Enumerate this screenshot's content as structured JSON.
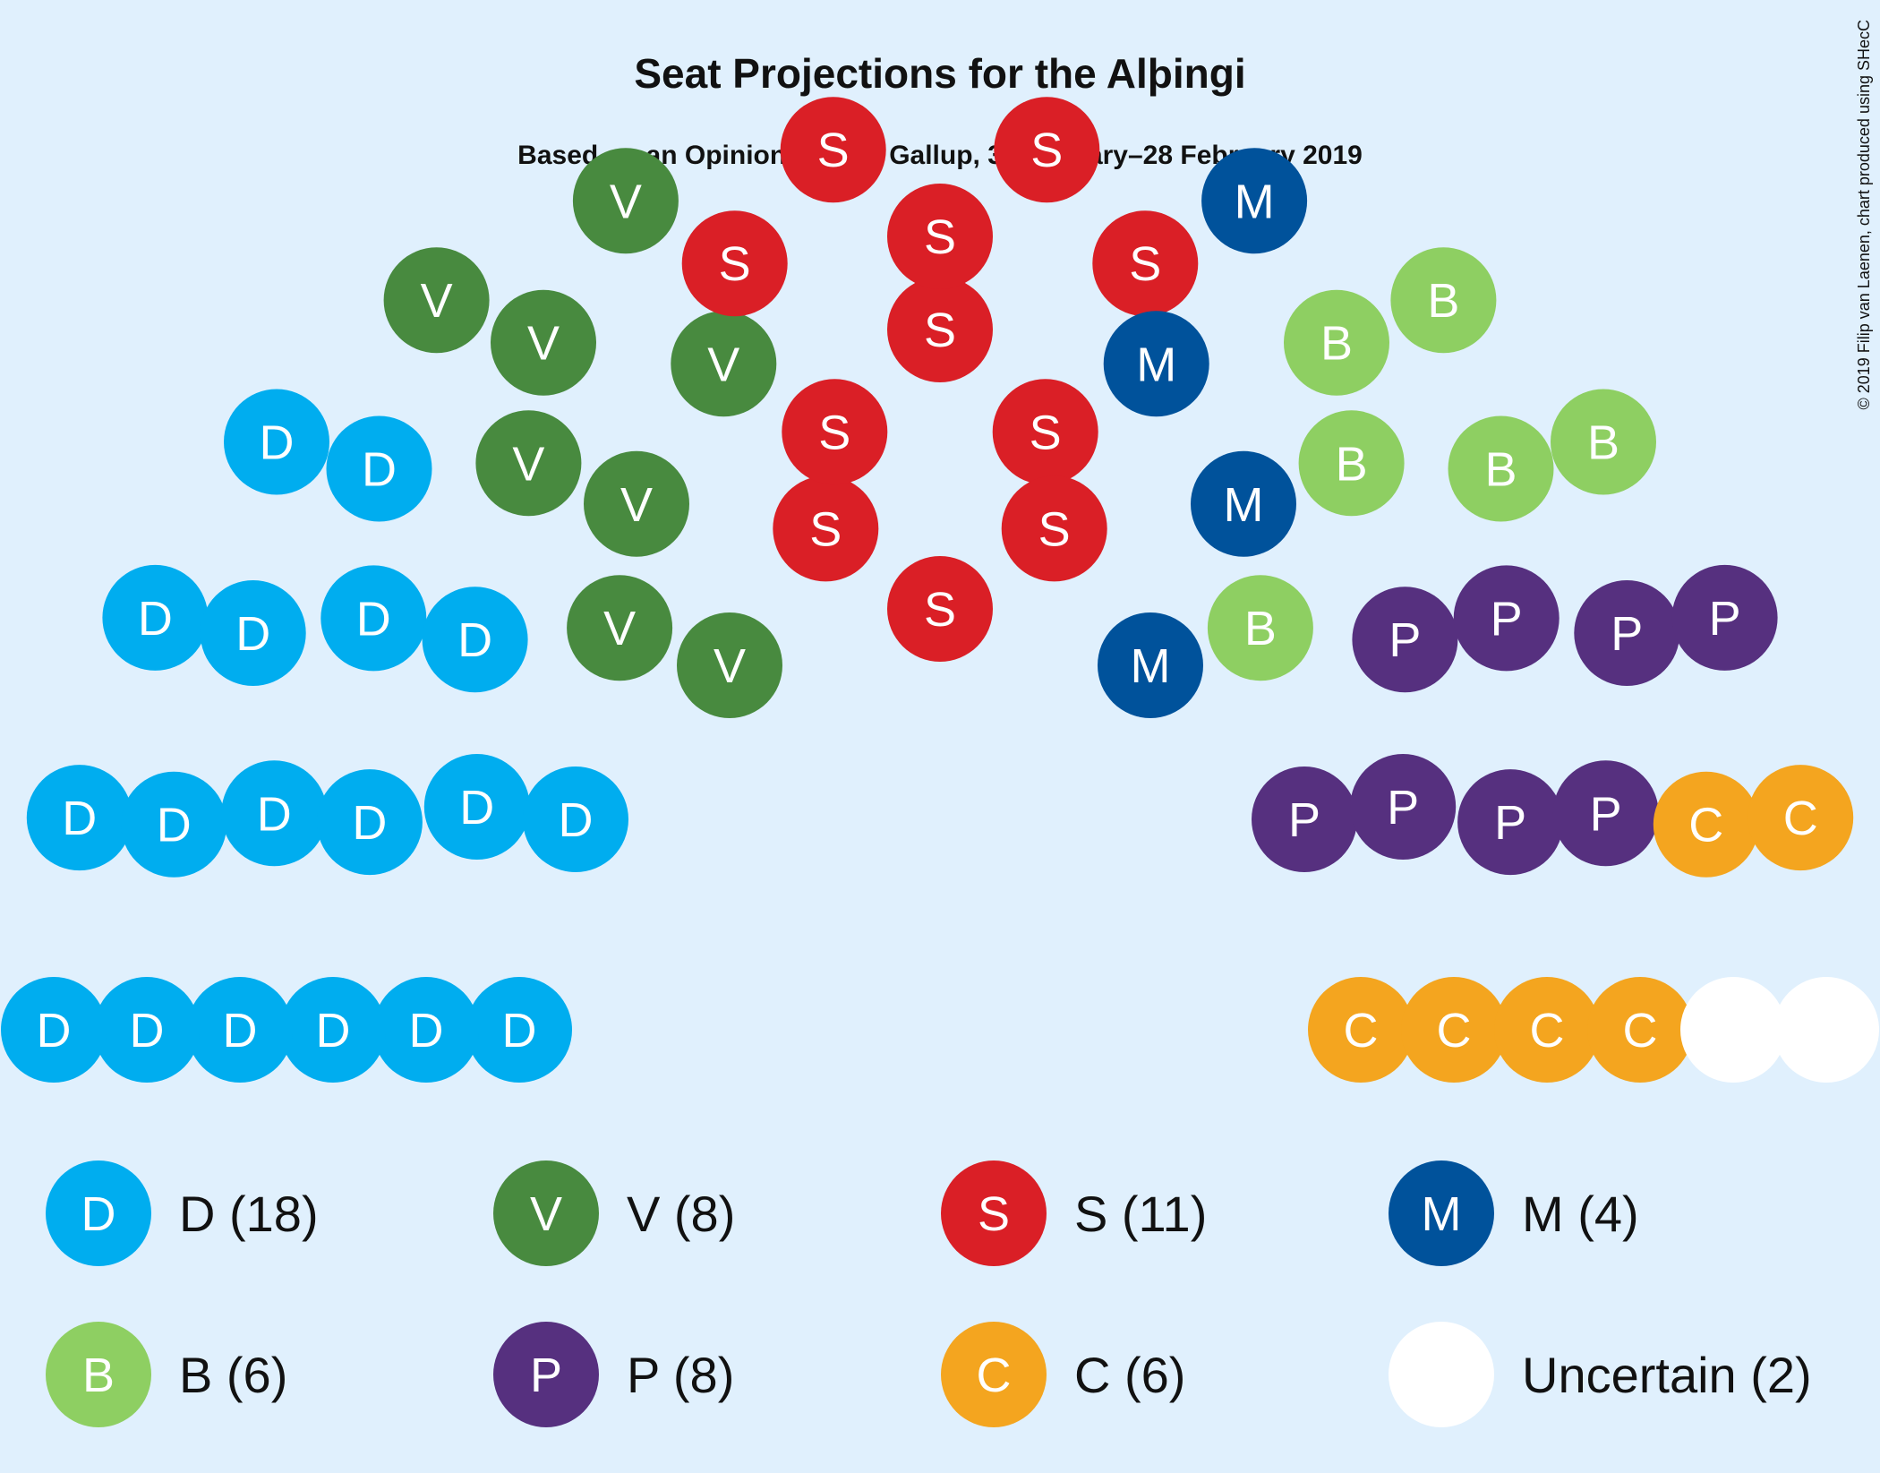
{
  "title": "Seat Projections for the Alþingi",
  "subtitle": "Based on an Opinion Poll by Gallup, 31 January–28 February 2019",
  "credit": "© 2019 Filip van Laenen, chart produced using SHecC",
  "chart_data": {
    "type": "parliament",
    "title": "Seat Projections for the Alþingi",
    "subtitle": "Based on an Opinion Poll by Gallup, 31 January–28 February 2019",
    "total_seats": 63,
    "series": [
      {
        "name": "D",
        "seats": 18,
        "color": "#00adef",
        "text_color": "#ffffff",
        "legend": "D (18)"
      },
      {
        "name": "V",
        "seats": 8,
        "color": "#488a3f",
        "text_color": "#ffffff",
        "legend": "V (8)"
      },
      {
        "name": "S",
        "seats": 11,
        "color": "#da1f26",
        "text_color": "#ffffff",
        "legend": "S (11)"
      },
      {
        "name": "M",
        "seats": 4,
        "color": "#00529b",
        "text_color": "#ffffff",
        "legend": "M (4)"
      },
      {
        "name": "B",
        "seats": 6,
        "color": "#8ecf62",
        "text_color": "#ffffff",
        "legend": "B (6)"
      },
      {
        "name": "P",
        "seats": 8,
        "color": "#56307f",
        "text_color": "#ffffff",
        "legend": "P (8)"
      },
      {
        "name": "C",
        "seats": 6,
        "color": "#f4a51f",
        "text_color": "#ffffff",
        "legend": "C (6)"
      },
      {
        "name": "",
        "seats": 2,
        "color": "#ffffff",
        "text_color": "#ffffff",
        "legend": "Uncertain (2)"
      }
    ]
  }
}
